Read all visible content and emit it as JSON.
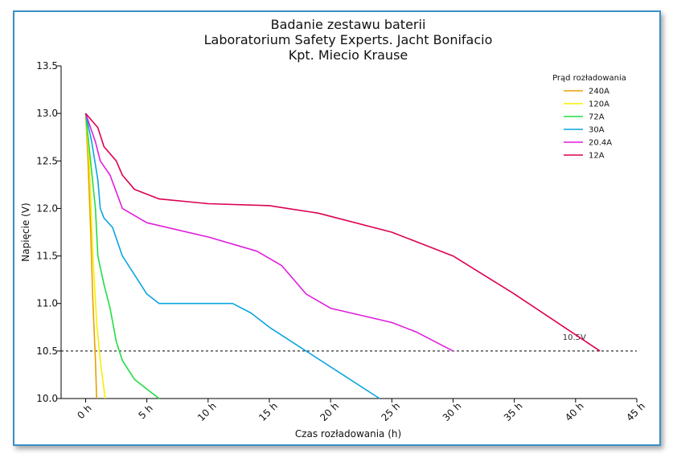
{
  "chart_data": {
    "type": "line",
    "title": [
      "Badanie zestawu baterii",
      "Laboratorium Safety Experts. Jacht Bonifacio",
      "Kpt. Miecio Krause"
    ],
    "xlabel": "Czas rozładowania (h)",
    "ylabel": "Napięcie (V)",
    "xlim": [
      -2,
      45
    ],
    "ylim": [
      10.0,
      13.5
    ],
    "xticks": [
      0,
      5,
      10,
      15,
      20,
      25,
      30,
      35,
      40,
      45
    ],
    "xtick_labels": [
      "0 h",
      "5 h",
      "10 h",
      "15 h",
      "20 h",
      "25 h",
      "30 h",
      "35 h",
      "40 h",
      "45 h"
    ],
    "yticks": [
      10.0,
      10.5,
      11.0,
      11.5,
      12.0,
      12.5,
      13.0,
      13.5
    ],
    "ytick_labels": [
      "10.0",
      "10.5",
      "11.0",
      "11.5",
      "12.0",
      "12.5",
      "13.0",
      "13.5"
    ],
    "legend_title": "Prąd rozładowania",
    "legend_position": "top-right",
    "grid": false,
    "reference_line": {
      "y": 10.5,
      "label": "10.5V",
      "style": "dashed",
      "color": "#000000"
    },
    "series": [
      {
        "name": "240A",
        "color": "#e6a100",
        "points": [
          [
            0,
            13.0
          ],
          [
            0.2,
            12.5
          ],
          [
            0.4,
            11.8
          ],
          [
            0.6,
            11.0
          ],
          [
            0.8,
            10.4
          ],
          [
            0.9,
            10.0
          ]
        ]
      },
      {
        "name": "120A",
        "color": "#f7f000",
        "points": [
          [
            0,
            13.0
          ],
          [
            0.3,
            12.5
          ],
          [
            0.6,
            11.5
          ],
          [
            0.9,
            10.8
          ],
          [
            1.2,
            10.4
          ],
          [
            1.6,
            10.0
          ]
        ]
      },
      {
        "name": "72A",
        "color": "#22dd44",
        "points": [
          [
            0,
            13.0
          ],
          [
            0.4,
            12.5
          ],
          [
            0.8,
            12.0
          ],
          [
            1.0,
            11.5
          ],
          [
            1.5,
            11.2
          ],
          [
            2.0,
            10.95
          ],
          [
            2.5,
            10.6
          ],
          [
            3.0,
            10.4
          ],
          [
            4.0,
            10.2
          ],
          [
            5.0,
            10.1
          ],
          [
            6.0,
            10.0
          ]
        ]
      },
      {
        "name": "30A",
        "color": "#0aa5e0",
        "points": [
          [
            0,
            13.0
          ],
          [
            0.5,
            12.7
          ],
          [
            1.0,
            12.3
          ],
          [
            1.2,
            12.0
          ],
          [
            1.5,
            11.9
          ],
          [
            2.2,
            11.8
          ],
          [
            3.0,
            11.5
          ],
          [
            4.0,
            11.3
          ],
          [
            5.0,
            11.1
          ],
          [
            6.0,
            11.0
          ],
          [
            12.0,
            11.0
          ],
          [
            13.5,
            10.9
          ],
          [
            15.0,
            10.75
          ],
          [
            18.0,
            10.5
          ],
          [
            21.0,
            10.25
          ],
          [
            24.0,
            10.0
          ]
        ]
      },
      {
        "name": "20.4A",
        "color": "#e01edc",
        "points": [
          [
            0,
            13.0
          ],
          [
            0.8,
            12.7
          ],
          [
            1.2,
            12.5
          ],
          [
            2.0,
            12.35
          ],
          [
            3.0,
            12.0
          ],
          [
            5.0,
            11.85
          ],
          [
            10.0,
            11.7
          ],
          [
            14.0,
            11.55
          ],
          [
            16.0,
            11.4
          ],
          [
            18.0,
            11.1
          ],
          [
            20.0,
            10.95
          ],
          [
            25.0,
            10.8
          ],
          [
            27.0,
            10.7
          ],
          [
            30.0,
            10.5
          ]
        ]
      },
      {
        "name": "12A",
        "color": "#dc0052",
        "points": [
          [
            0,
            13.0
          ],
          [
            1.0,
            12.85
          ],
          [
            1.5,
            12.65
          ],
          [
            2.5,
            12.5
          ],
          [
            3.0,
            12.35
          ],
          [
            4.0,
            12.2
          ],
          [
            6.0,
            12.1
          ],
          [
            10.0,
            12.05
          ],
          [
            15.0,
            12.03
          ],
          [
            19.0,
            11.95
          ],
          [
            25.0,
            11.75
          ],
          [
            30.0,
            11.5
          ],
          [
            35.0,
            11.1
          ],
          [
            42.0,
            10.5
          ]
        ]
      }
    ]
  }
}
